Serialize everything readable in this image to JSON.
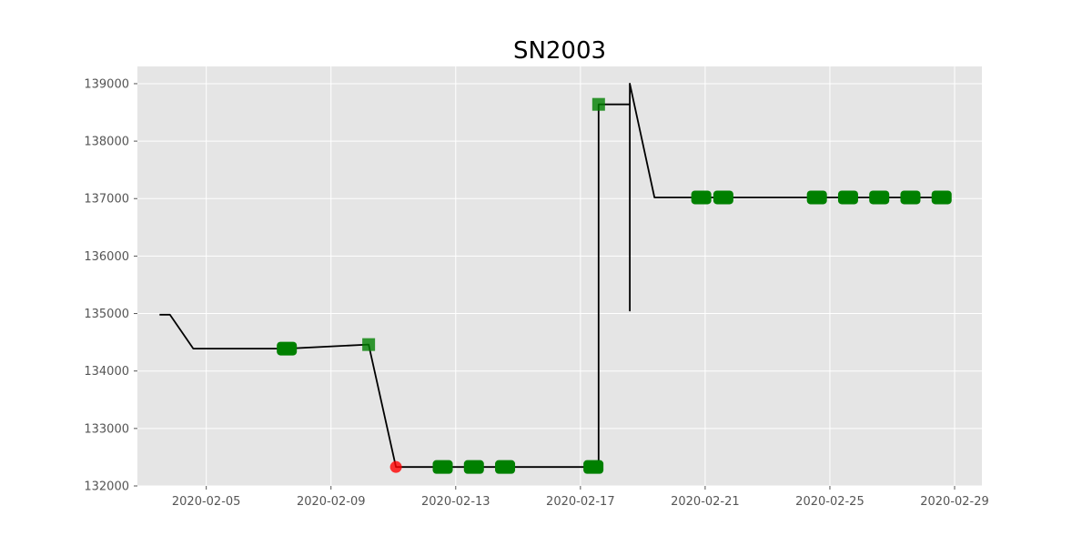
{
  "chart_data": {
    "type": "line",
    "title": "SN2003",
    "xlabel": "",
    "ylabel": "",
    "x_type": "date",
    "xlim": [
      "2020-02-02T19:00",
      "2020-02-29T21:00"
    ],
    "ylim": [
      132000,
      139300
    ],
    "x_ticks": [
      "2020-02-05",
      "2020-02-09",
      "2020-02-13",
      "2020-02-17",
      "2020-02-21",
      "2020-02-25",
      "2020-02-29"
    ],
    "y_ticks": [
      132000,
      133000,
      134000,
      135000,
      136000,
      137000,
      138000,
      139000
    ],
    "grid": true,
    "legend": "none",
    "colors": {
      "background": "#e5e5e5",
      "grid": "#ffffff",
      "line": "#000000",
      "ok_marker": "#008000",
      "alert_marker": "#ff0000"
    },
    "series": [
      {
        "x": [
          "2020-02-03T12:00",
          "2020-02-03T20:00",
          "2020-02-04T14:00",
          "2020-02-07T14:00",
          "2020-02-10T05:00",
          "2020-02-11T02:00",
          "2020-02-12T14:00",
          "2020-02-13T14:00",
          "2020-02-14T14:00",
          "2020-02-17T10:00",
          "2020-02-17T14:00",
          "2020-02-17T14:00",
          "2020-02-18T14:00",
          "2020-02-18T14:00",
          "2020-02-18T14:00",
          "2020-02-19T09:00",
          "2020-02-20T21:00",
          "2020-02-21T14:00",
          "2020-02-24T14:00",
          "2020-02-25T14:00",
          "2020-02-26T14:00",
          "2020-02-27T14:00",
          "2020-02-28T14:00"
        ],
        "y": [
          134980,
          134980,
          134390,
          134390,
          134460,
          132330,
          132330,
          132330,
          132330,
          132330,
          132330,
          138640,
          138640,
          135050,
          139000,
          137020,
          137020,
          137020,
          137020,
          137020,
          137020,
          137020,
          137020
        ]
      }
    ],
    "markers": [
      {
        "x": "2020-02-07T14:00",
        "y": 134390,
        "shape": "rounded-square",
        "color": "#008000"
      },
      {
        "x": "2020-02-10T05:00",
        "y": 134460,
        "shape": "square",
        "color": "#008000"
      },
      {
        "x": "2020-02-11T02:00",
        "y": 132330,
        "shape": "circle",
        "color": "#ff0000"
      },
      {
        "x": "2020-02-12T14:00",
        "y": 132330,
        "shape": "rounded-square",
        "color": "#008000"
      },
      {
        "x": "2020-02-13T14:00",
        "y": 132330,
        "shape": "rounded-square",
        "color": "#008000"
      },
      {
        "x": "2020-02-14T14:00",
        "y": 132330,
        "shape": "rounded-square",
        "color": "#008000"
      },
      {
        "x": "2020-02-17T10:00",
        "y": 132330,
        "shape": "rounded-square",
        "color": "#008000"
      },
      {
        "x": "2020-02-17T14:00",
        "y": 138640,
        "shape": "square",
        "color": "#008000"
      },
      {
        "x": "2020-02-20T21:00",
        "y": 137020,
        "shape": "rounded-square",
        "color": "#008000"
      },
      {
        "x": "2020-02-21T14:00",
        "y": 137020,
        "shape": "rounded-square",
        "color": "#008000"
      },
      {
        "x": "2020-02-24T14:00",
        "y": 137020,
        "shape": "rounded-square",
        "color": "#008000"
      },
      {
        "x": "2020-02-25T14:00",
        "y": 137020,
        "shape": "rounded-square",
        "color": "#008000"
      },
      {
        "x": "2020-02-26T14:00",
        "y": 137020,
        "shape": "rounded-square",
        "color": "#008000"
      },
      {
        "x": "2020-02-27T14:00",
        "y": 137020,
        "shape": "rounded-square",
        "color": "#008000"
      },
      {
        "x": "2020-02-28T14:00",
        "y": 137020,
        "shape": "rounded-square",
        "color": "#008000"
      }
    ]
  }
}
